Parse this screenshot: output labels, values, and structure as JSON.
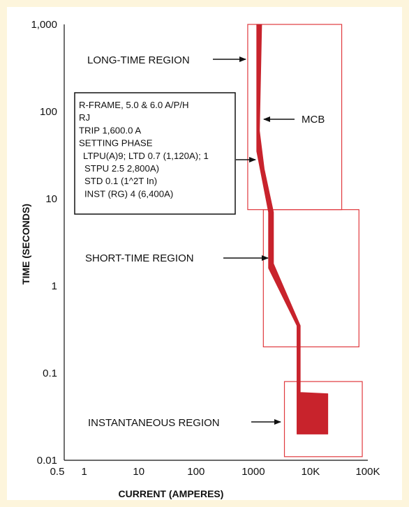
{
  "chart_data": {
    "type": "line",
    "xlabel": "CURRENT (AMPERES)",
    "ylabel": "TIME (SECONDS)",
    "x_scale": "log",
    "y_scale": "log",
    "xlim": [
      0.5,
      100000
    ],
    "ylim": [
      0.01,
      1000
    ],
    "x_ticks": [
      {
        "value": 0.5,
        "label": "0.5"
      },
      {
        "value": 1,
        "label": "1"
      },
      {
        "value": 10,
        "label": "10"
      },
      {
        "value": 100,
        "label": "100"
      },
      {
        "value": 1000,
        "label": "1000"
      },
      {
        "value": 10000,
        "label": "10K"
      },
      {
        "value": 100000,
        "label": "100K"
      }
    ],
    "y_ticks": [
      {
        "value": 1000,
        "label": "1,000"
      },
      {
        "value": 100,
        "label": "100"
      },
      {
        "value": 10,
        "label": "10"
      },
      {
        "value": 1,
        "label": "1"
      },
      {
        "value": 0.1,
        "label": "0.1"
      },
      {
        "value": 0.01,
        "label": "0.01"
      }
    ],
    "grid": false,
    "legend": "none",
    "curve": {
      "color": "#c8232c",
      "band_left": [
        {
          "x": 1150,
          "y": 1000
        },
        {
          "x": 1150,
          "y": 35
        },
        {
          "x": 1850,
          "y": 7
        },
        {
          "x": 1850,
          "y": 1.6
        },
        {
          "x": 5800,
          "y": 0.35
        },
        {
          "x": 5800,
          "y": 0.02
        }
      ],
      "band_right": [
        {
          "x": 1400,
          "y": 1000
        },
        {
          "x": 1280,
          "y": 60
        },
        {
          "x": 1550,
          "y": 22
        },
        {
          "x": 2250,
          "y": 7
        },
        {
          "x": 2250,
          "y": 1.8
        },
        {
          "x": 6600,
          "y": 0.35
        },
        {
          "x": 6600,
          "y": 0.06
        },
        {
          "x": 20000,
          "y": 0.058
        },
        {
          "x": 20000,
          "y": 0.02
        }
      ]
    },
    "regions": [
      {
        "name": "long-time-region",
        "label": "LONG-TIME REGION",
        "x_range": [
          800,
          35000
        ],
        "y_range": [
          7.5,
          1000
        ],
        "color": "#e0393e"
      },
      {
        "name": "short-time-region",
        "label": "SHORT-TIME REGION",
        "x_range": [
          1500,
          70000
        ],
        "y_range": [
          0.2,
          7.5
        ],
        "color": "#e0393e"
      },
      {
        "name": "instantaneous-region",
        "label": "INSTANTANEOUS REGION",
        "x_range": [
          3500,
          80000
        ],
        "y_range": [
          0.011,
          0.08
        ],
        "color": "#e0393e"
      }
    ],
    "annotations": {
      "mcb": "MCB",
      "settings_box": [
        "R-FRAME, 5.0 & 6.0 A/P/H",
        "RJ",
        "TRIP 1,600.0 A",
        "SETTING PHASE",
        "LTPU(A)9; LTD 0.7 (1,120A); 1",
        "STPU 2.5 2,800A)",
        "STD 0.1 (1^2T In)",
        "INST (RG) 4 (6,400A)"
      ]
    }
  },
  "colors": {
    "background": "#fdf5dc",
    "panel": "#ffffff",
    "curve": "#c8232c",
    "region_border": "#e0393e",
    "text": "#111111"
  }
}
